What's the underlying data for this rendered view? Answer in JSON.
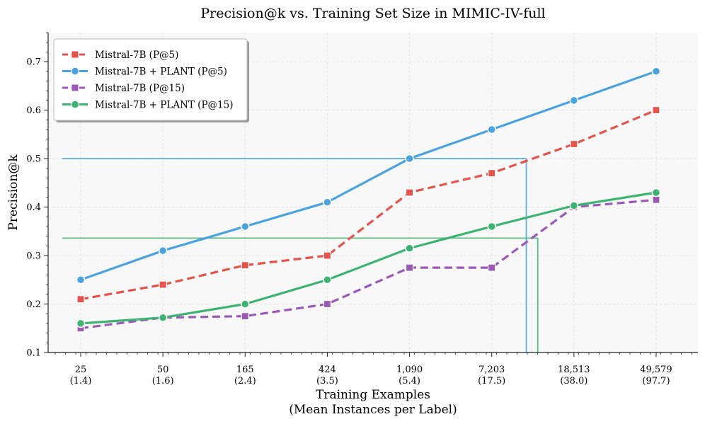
{
  "chart_data": {
    "type": "line",
    "title": "Precision@k vs. Training Set Size in MIMIC-IV-full",
    "xlabel": [
      "Training Examples",
      "(Mean Instances per Label)"
    ],
    "ylabel": "Precision@k",
    "ylim": [
      0.1,
      0.76
    ],
    "yticks": [
      "0.1",
      "0.2",
      "0.3",
      "0.4",
      "0.5",
      "0.6",
      "0.7"
    ],
    "categories": [
      {
        "top": "25",
        "bottom": "(1.4)"
      },
      {
        "top": "50",
        "bottom": "(1.6)"
      },
      {
        "top": "165",
        "bottom": "(2.4)"
      },
      {
        "top": "424",
        "bottom": "(3.5)"
      },
      {
        "top": "1,090",
        "bottom": "(5.4)"
      },
      {
        "top": "7,203",
        "bottom": "(17.5)"
      },
      {
        "top": "18,513",
        "bottom": "(38.0)"
      },
      {
        "top": "49,579",
        "bottom": "(97.7)"
      }
    ],
    "grid": true,
    "legend_position": "top-left",
    "series": [
      {
        "name": "Mistral-7B (P@5)",
        "color": "#e5534b",
        "dashed": true,
        "marker": "square",
        "values": [
          0.21,
          0.24,
          0.28,
          0.3,
          0.43,
          0.47,
          0.53,
          0.6
        ]
      },
      {
        "name": "Mistral-7B + PLANT (P@5)",
        "color": "#4aa3df",
        "dashed": false,
        "marker": "circle",
        "values": [
          0.25,
          0.31,
          0.36,
          0.41,
          0.5,
          0.56,
          0.62,
          0.68
        ]
      },
      {
        "name": "Mistral-7B (P@15)",
        "color": "#9b59b6",
        "dashed": true,
        "marker": "square",
        "values": [
          0.15,
          0.172,
          0.175,
          0.2,
          0.275,
          0.275,
          0.4,
          0.415
        ]
      },
      {
        "name": "Mistral-7B + PLANT (P@15)",
        "color": "#3cb371",
        "dashed": false,
        "marker": "circle",
        "values": [
          0.16,
          0.172,
          0.2,
          0.25,
          0.315,
          0.36,
          0.403,
          0.43
        ]
      }
    ],
    "reference_lines": [
      {
        "color": "#4aa3df",
        "y": 0.5,
        "x_category_index": 5.42
      },
      {
        "color": "#3cb371",
        "y": 0.336,
        "x_category_index": 5.56
      }
    ]
  }
}
